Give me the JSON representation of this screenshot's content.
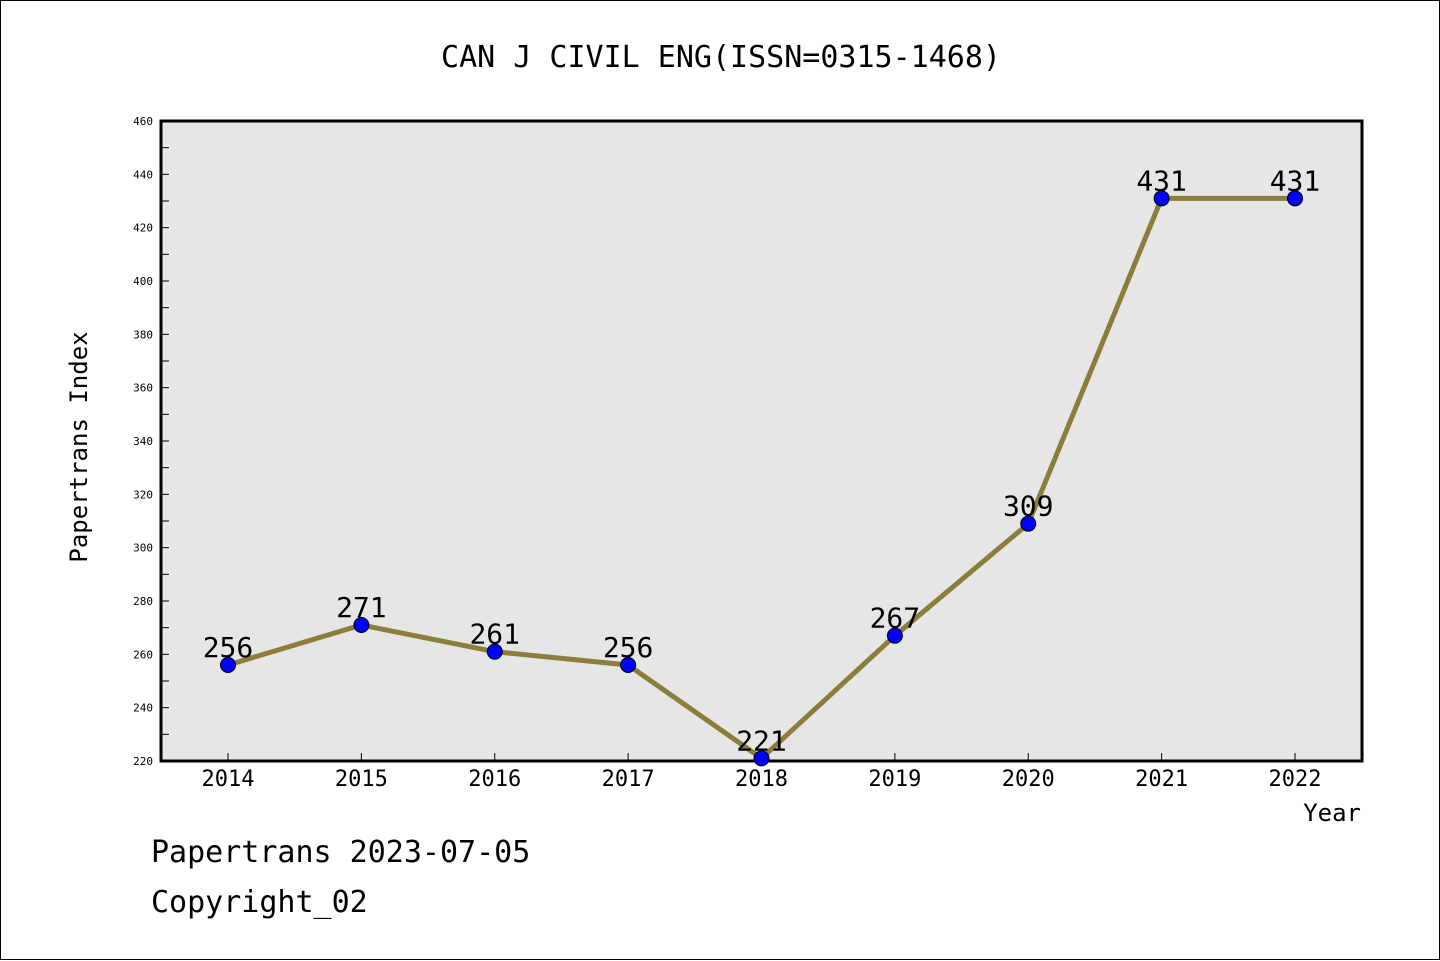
{
  "chart_data": {
    "type": "line",
    "title": "CAN J CIVIL ENG(ISSN=0315-1468)",
    "xlabel": "Year",
    "ylabel": "Papertrans Index",
    "categories": [
      "2014",
      "2015",
      "2016",
      "2017",
      "2018",
      "2019",
      "2020",
      "2021",
      "2022"
    ],
    "series": [
      {
        "values": [
          256,
          271,
          261,
          256,
          221,
          267,
          309,
          431,
          431
        ]
      }
    ],
    "ylim": [
      220,
      460
    ],
    "yticks": [
      220,
      240,
      260,
      280,
      300,
      320,
      340,
      360,
      380,
      400,
      420,
      440,
      460
    ],
    "grid": false,
    "data_labels": true,
    "colors": {
      "line": "#8B7D3A",
      "marker": "#0000FF",
      "plot_background": "#E6E6E6",
      "axes": "#000000"
    }
  },
  "footer": {
    "line1": "Papertrans 2023-07-05",
    "line2": "Copyright_02"
  }
}
